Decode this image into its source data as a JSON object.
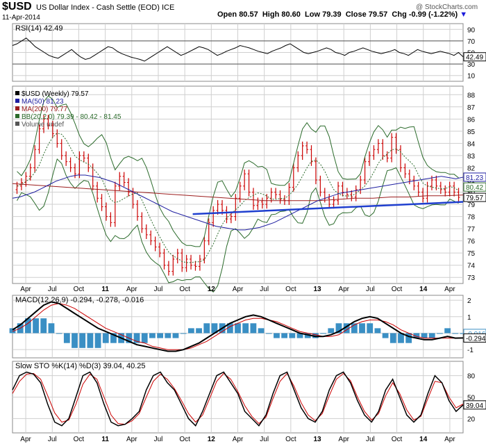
{
  "header": {
    "symbol": "$USD",
    "name": "US Dollar Index - Cash Settle (EOD) ICE",
    "date": "11-Apr-2014",
    "ohlc": {
      "open_label": "Open",
      "open": "80.57",
      "high_label": "High",
      "high": "80.60",
      "low_label": "Low",
      "low": "79.39",
      "close_label": "Close",
      "close": "79.57",
      "chg_label": "Chg",
      "chg": "-0.99 (-1.22%)"
    },
    "chg_arrow": "down-arrow-icon",
    "watermark": "@ StockCharts.com"
  },
  "colors": {
    "price_bars": "#cc0000",
    "ma50": "#1e1ea0",
    "ma200": "#9b1c1c",
    "bollinger": "#2a6a2a",
    "trendline": "#1f3fcf",
    "macd_line": "#000000",
    "signal_line": "#cc0000",
    "histogram": "#3a8fc4",
    "grid": "#cfcfcf"
  },
  "chart_data": [
    {
      "type": "line",
      "panel": "RSI",
      "legend": "RSI(14) 42.49",
      "last_value": "42.49",
      "y_ticks": [
        "90",
        "70",
        "50",
        "30",
        "10"
      ],
      "ylim": [
        0,
        100
      ],
      "reference_levels": [
        70,
        30
      ],
      "series": [
        {
          "values": [
            62,
            65,
            70,
            75,
            68,
            60,
            55,
            50,
            45,
            42,
            40,
            45,
            50,
            55,
            48,
            42,
            38,
            40,
            45,
            50,
            55,
            60,
            58,
            52,
            48,
            45,
            42,
            40,
            38,
            35,
            40,
            45,
            50,
            55,
            60,
            55,
            50,
            45,
            48,
            52,
            56,
            60,
            58,
            55,
            50,
            45,
            48,
            52,
            55,
            58,
            62,
            60,
            58,
            55,
            52,
            50,
            48,
            52,
            55,
            58,
            62,
            65,
            60,
            55,
            50,
            48,
            50,
            52,
            55,
            58,
            55,
            50,
            48,
            45,
            50,
            52,
            55,
            58,
            55,
            52,
            50,
            48,
            50,
            52,
            55,
            50,
            48,
            45,
            50,
            55,
            52,
            50,
            48,
            50,
            52,
            50,
            48,
            45,
            50,
            42.49
          ]
        }
      ]
    },
    {
      "type": "bar",
      "panel": "price",
      "legend": [
        {
          "label": "$USD (Weekly) 79.57"
        },
        {
          "label": "MA(50) 81.23"
        },
        {
          "label": "MA(200) 79.77"
        },
        {
          "label": "BB(20,2.0) 79.39 - 80.42 - 81.45"
        },
        {
          "label": "Volume undef"
        }
      ],
      "x_labels": [
        "Apr",
        "Jul",
        "Oct",
        "11",
        "Apr",
        "Jul",
        "Oct",
        "12",
        "Apr",
        "Jul",
        "Oct",
        "13",
        "Apr",
        "Jul",
        "Oct",
        "14",
        "Apr"
      ],
      "y_ticks": [
        "88",
        "87",
        "86",
        "85",
        "84",
        "83",
        "82",
        "81",
        "80",
        "79",
        "78",
        "77",
        "76",
        "75",
        "74",
        "73"
      ],
      "ylim": [
        72.5,
        88.7
      ],
      "right_labels": [
        "81.23",
        "80.42",
        "79.57"
      ],
      "close": [
        80.5,
        80.8,
        81.3,
        82.0,
        83.5,
        85.2,
        86.0,
        85.5,
        84.8,
        84.0,
        83.0,
        82.5,
        82.0,
        81.5,
        83.0,
        82.8,
        82.0,
        80.5,
        79.5,
        78.8,
        78.0,
        77.5,
        80.5,
        81.3,
        80.8,
        80.0,
        79.0,
        78.0,
        77.0,
        76.5,
        76.0,
        75.5,
        75.0,
        74.0,
        73.5,
        74.5,
        75.0,
        73.8,
        74.5,
        74.0,
        73.9,
        74.5,
        76.0,
        77.5,
        78.5,
        79.0,
        78.5,
        77.8,
        78.0,
        79.5,
        80.5,
        81.5,
        80.0,
        78.9,
        79.2,
        79.0,
        79.5,
        80.0,
        79.8,
        79.4,
        79.3,
        80.4,
        82.0,
        83.0,
        83.8,
        83.5,
        82.5,
        81.0,
        80.0,
        79.5,
        79.0,
        79.3,
        80.5,
        80.0,
        79.8,
        79.6,
        80.2,
        81.0,
        82.5,
        83.0,
        83.5,
        84.0,
        83.0,
        82.8,
        84.5,
        83.5,
        82.0,
        81.5,
        81.0,
        80.5,
        80.0,
        79.5,
        80.5,
        81.0,
        80.5,
        80.2,
        80.0,
        80.5,
        80.0,
        79.57
      ],
      "ma50": [
        79.5,
        79.6,
        79.8,
        80.0,
        80.3,
        80.6,
        80.9,
        81.1,
        81.3,
        81.4,
        81.4,
        81.3,
        81.2,
        81.0,
        80.8,
        80.5,
        80.2,
        79.9,
        79.6,
        79.3,
        79.0,
        78.7,
        78.4,
        78.2,
        78.0,
        77.8,
        77.6,
        77.4,
        77.2,
        77.1,
        77.0,
        76.9,
        76.9,
        77.0,
        77.1,
        77.3,
        77.5,
        77.8,
        78.1,
        78.4,
        78.7,
        79.0,
        79.3,
        79.5,
        79.7,
        79.9,
        80.0,
        80.1,
        80.2,
        80.3,
        80.4,
        80.5,
        80.6,
        80.7,
        80.8,
        80.9,
        81.0,
        81.1,
        81.2,
        81.3,
        81.2,
        81.1,
        81.23
      ],
      "ma200": [
        80.7,
        80.6,
        80.5,
        80.4,
        80.3,
        80.2,
        80.1,
        80.0,
        79.9,
        79.8,
        79.7,
        79.6,
        79.5,
        79.4,
        79.3,
        79.3,
        79.3,
        79.3,
        79.4,
        79.5,
        79.5,
        79.6,
        79.6,
        79.7,
        79.7,
        79.77
      ],
      "trendline": [
        {
          "x": 0.4,
          "y": 78.2
        },
        {
          "x": 1.0,
          "y": 79.2
        }
      ]
    },
    {
      "type": "line",
      "panel": "MACD",
      "legend": "MACD(12,26,9) -0.294, -0.278, -0.016",
      "y_ticks": [
        "2",
        "1",
        "0",
        "-1"
      ],
      "ylim": [
        -1.5,
        2.3
      ],
      "right_labels": [
        "-0.016",
        "-0.294"
      ],
      "series": [
        {
          "values": [
            0.2,
            0.5,
            0.9,
            1.3,
            1.7,
            1.9,
            1.8,
            1.5,
            1.2,
            0.9,
            0.6,
            0.3,
            0.1,
            -0.1,
            -0.3,
            -0.5,
            -0.7,
            -0.8,
            -0.9,
            -1.0,
            -1.1,
            -1.1,
            -1.0,
            -0.8,
            -0.6,
            -0.3,
            0.0,
            0.3,
            0.6,
            0.8,
            1.0,
            1.1,
            1.0,
            0.8,
            0.6,
            0.4,
            0.2,
            0.0,
            -0.1,
            -0.2,
            -0.2,
            -0.1,
            0.1,
            0.4,
            0.7,
            0.9,
            1.0,
            0.9,
            0.6,
            0.3,
            0.0,
            -0.2,
            -0.3,
            -0.4,
            -0.4,
            -0.3,
            -0.2,
            -0.3,
            -0.294
          ]
        },
        {
          "values": [
            0.1,
            0.3,
            0.6,
            1.0,
            1.4,
            1.7,
            1.8,
            1.7,
            1.5,
            1.2,
            0.9,
            0.6,
            0.3,
            0.1,
            -0.1,
            -0.3,
            -0.5,
            -0.6,
            -0.8,
            -0.9,
            -1.0,
            -1.0,
            -1.0,
            -0.9,
            -0.7,
            -0.5,
            -0.2,
            0.1,
            0.4,
            0.6,
            0.8,
            0.9,
            0.9,
            0.8,
            0.7,
            0.5,
            0.3,
            0.1,
            0.0,
            -0.1,
            -0.2,
            -0.2,
            -0.1,
            0.2,
            0.5,
            0.7,
            0.8,
            0.8,
            0.7,
            0.5,
            0.2,
            0.0,
            -0.2,
            -0.3,
            -0.3,
            -0.3,
            -0.3,
            -0.3,
            -0.278
          ]
        }
      ]
    },
    {
      "type": "line",
      "panel": "SlowSTO",
      "legend": "Slow STO %K(14) %D(3) 39.04, 40.25",
      "y_ticks": [
        "80",
        "50",
        "20"
      ],
      "ylim": [
        0,
        100
      ],
      "right_labels": [
        "39.04"
      ],
      "series": [
        {
          "values": [
            60,
            80,
            85,
            82,
            70,
            40,
            15,
            10,
            20,
            50,
            80,
            85,
            70,
            40,
            15,
            10,
            12,
            20,
            30,
            60,
            80,
            85,
            70,
            60,
            40,
            20,
            10,
            30,
            55,
            80,
            85,
            70,
            55,
            30,
            20,
            10,
            25,
            55,
            80,
            85,
            60,
            35,
            20,
            15,
            30,
            60,
            80,
            85,
            70,
            45,
            25,
            15,
            30,
            60,
            75,
            50,
            25,
            15,
            25,
            55,
            80,
            70,
            45,
            30,
            39.04
          ]
        },
        {
          "values": [
            55,
            72,
            82,
            83,
            75,
            52,
            28,
            15,
            18,
            40,
            68,
            82,
            75,
            50,
            25,
            13,
            12,
            17,
            27,
            50,
            72,
            82,
            75,
            62,
            45,
            27,
            15,
            25,
            48,
            72,
            83,
            75,
            58,
            38,
            23,
            13,
            22,
            48,
            72,
            83,
            65,
            42,
            25,
            17,
            27,
            52,
            75,
            83,
            73,
            50,
            30,
            18,
            27,
            52,
            70,
            55,
            32,
            18,
            23,
            48,
            72,
            70,
            50,
            35,
            40.25
          ]
        }
      ]
    }
  ]
}
